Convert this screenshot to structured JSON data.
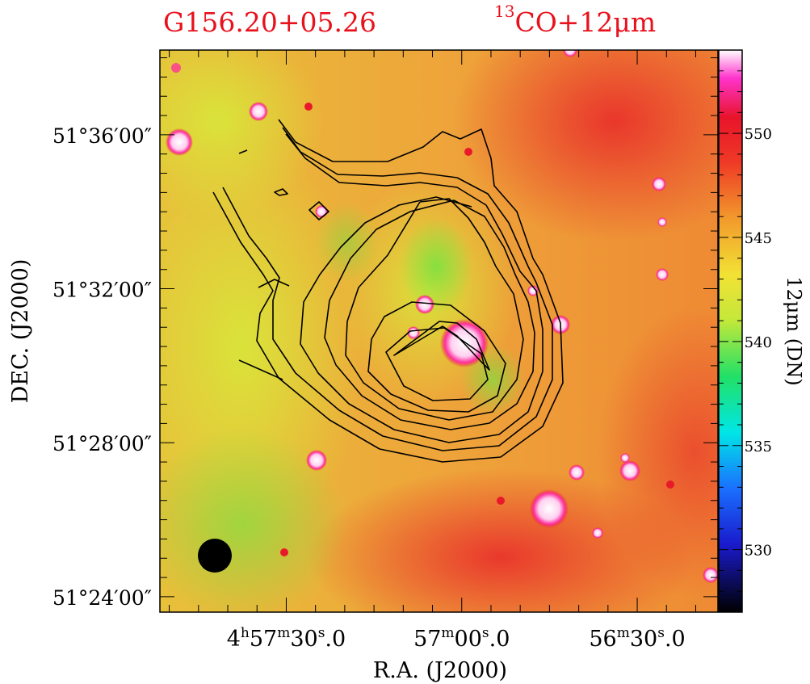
{
  "title_left": "G156.20+05.26",
  "title_right_sup": "13",
  "title_right_main": "CO+12μm",
  "chart_data": {
    "type": "heatmap",
    "title_left": "G156.20+05.26",
    "title_right": "13CO+12μm",
    "xlabel": "R.A. (J2000)",
    "ylabel": "DEC. (J2000)",
    "colorbar_label": "12μm (DN)",
    "x_ticks": [
      {
        "h": "4",
        "m": "57",
        "s": "30",
        "frac": "0",
        "show_h": true,
        "show_m": true,
        "ra_min": 57.5
      },
      {
        "h": "",
        "m": "57",
        "s": "00",
        "frac": "0",
        "show_h": false,
        "show_m": true,
        "ra_min": 57.0
      },
      {
        "h": "",
        "m": "56",
        "s": "30",
        "frac": "0",
        "show_h": false,
        "show_m": true,
        "ra_min": 56.5
      }
    ],
    "y_ticks": [
      {
        "label": "51°24′00″",
        "dec_arcmin": 24
      },
      {
        "label": "51°28′00″",
        "dec_arcmin": 28
      },
      {
        "label": "51°32′00″",
        "dec_arcmin": 32
      },
      {
        "label": "51°36′00″",
        "dec_arcmin": 36
      }
    ],
    "ra_range_min": [
      57.86,
      56.27
    ],
    "dec_range_arcmin": [
      23.6,
      38.2
    ],
    "colorbar": {
      "min": 527,
      "max": 554,
      "ticks": [
        530,
        535,
        540,
        545,
        550
      ]
    },
    "background_colors": {
      "high": "#e8332a",
      "mid": "#f09a2a",
      "low": "#d6e832",
      "green": "#7fe040"
    },
    "contour_levels": 8,
    "beam": {
      "shape": "circle",
      "color": "#000000",
      "location": "bottom-left"
    }
  }
}
